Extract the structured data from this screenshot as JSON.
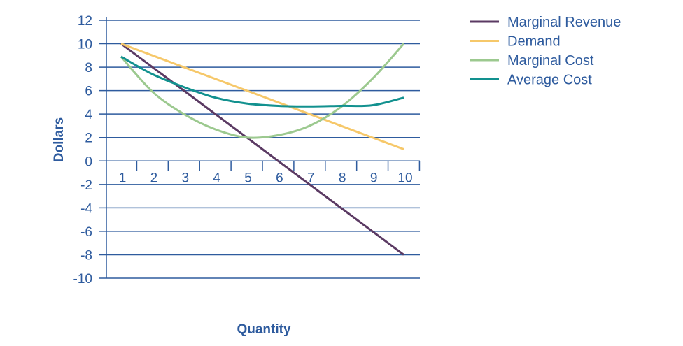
{
  "chart_data": {
    "type": "line",
    "title": "",
    "xlabel": "Quantity",
    "ylabel": "Dollars",
    "x": [
      1,
      2,
      3,
      4,
      5,
      6,
      7,
      8,
      9,
      10
    ],
    "xlim": [
      1,
      10
    ],
    "ylim": [
      -10,
      12
    ],
    "yticks": [
      12,
      10,
      8,
      6,
      4,
      2,
      0,
      -2,
      -4,
      -6,
      -8,
      -10
    ],
    "xticks": [
      1,
      2,
      3,
      4,
      5,
      6,
      7,
      8,
      9,
      10
    ],
    "grid": true,
    "legend_position": "top-right",
    "series": [
      {
        "name": "Marginal Revenue",
        "color": "#5b3a63",
        "values": [
          10,
          8,
          6,
          4,
          2,
          0,
          -2,
          -4,
          -6,
          -8
        ]
      },
      {
        "name": "Demand",
        "color": "#f6c86a",
        "values": [
          10,
          9,
          8,
          7,
          6,
          5,
          4,
          3,
          2,
          1
        ]
      },
      {
        "name": "Marginal Cost",
        "color": "#9cc98f",
        "values": [
          8.9,
          5.9,
          4.0,
          2.7,
          2.0,
          2.2,
          3.0,
          4.6,
          7.0,
          10.0
        ]
      },
      {
        "name": "Average Cost",
        "color": "#12918f",
        "values": [
          8.9,
          7.4,
          6.3,
          5.4,
          4.9,
          4.7,
          4.65,
          4.7,
          4.75,
          5.4
        ]
      }
    ]
  }
}
